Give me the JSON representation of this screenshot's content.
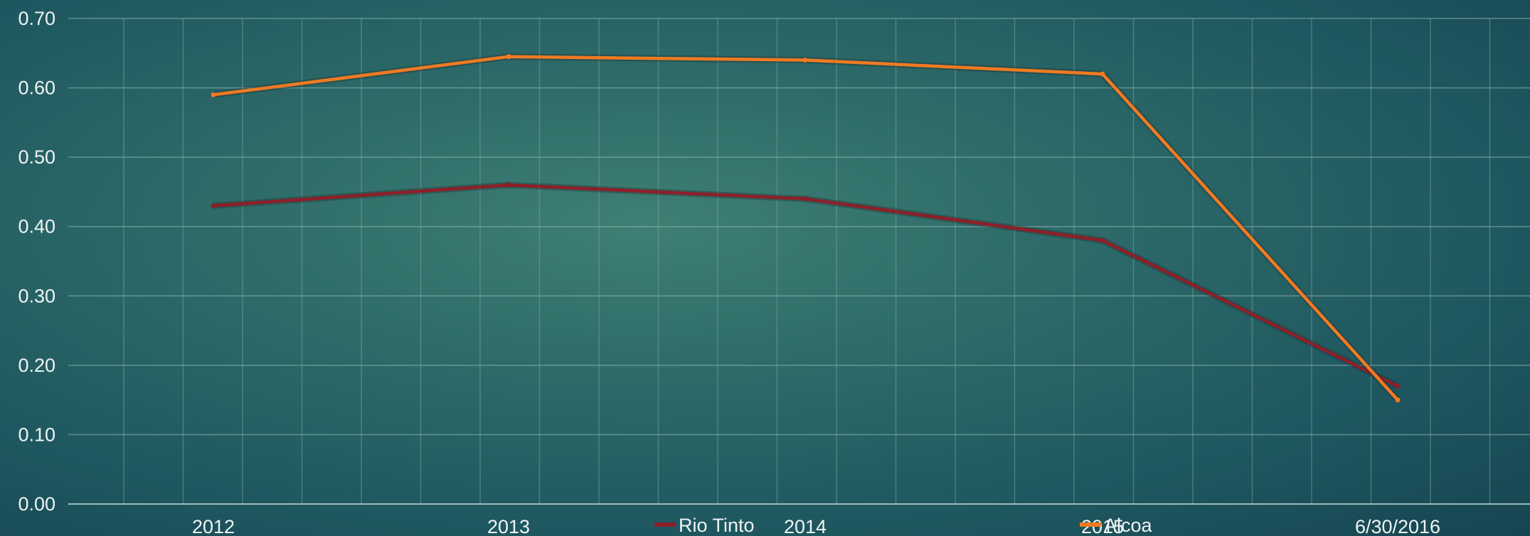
{
  "chart_data": {
    "type": "line",
    "x_ticks": [
      "2012",
      "2013",
      "2014",
      "2015",
      "6/30/2016"
    ],
    "x": [
      "2012",
      "2013",
      "2014",
      "2015",
      "6/30/2016"
    ],
    "y_ticks": [
      "0.00",
      "0.10",
      "0.20",
      "0.30",
      "0.40",
      "0.50",
      "0.60",
      "0.70"
    ],
    "ylim": [
      0,
      0.7
    ],
    "grid": true,
    "legend_position": "bottom",
    "series": [
      {
        "name": "Rio Tinto",
        "color": "#8e1f2a",
        "values": [
          0.43,
          0.46,
          0.44,
          0.38,
          0.17
        ]
      },
      {
        "name": "Alcoa",
        "color": "#f07a22",
        "values": [
          0.59,
          0.645,
          0.64,
          0.62,
          0.15
        ]
      }
    ]
  }
}
